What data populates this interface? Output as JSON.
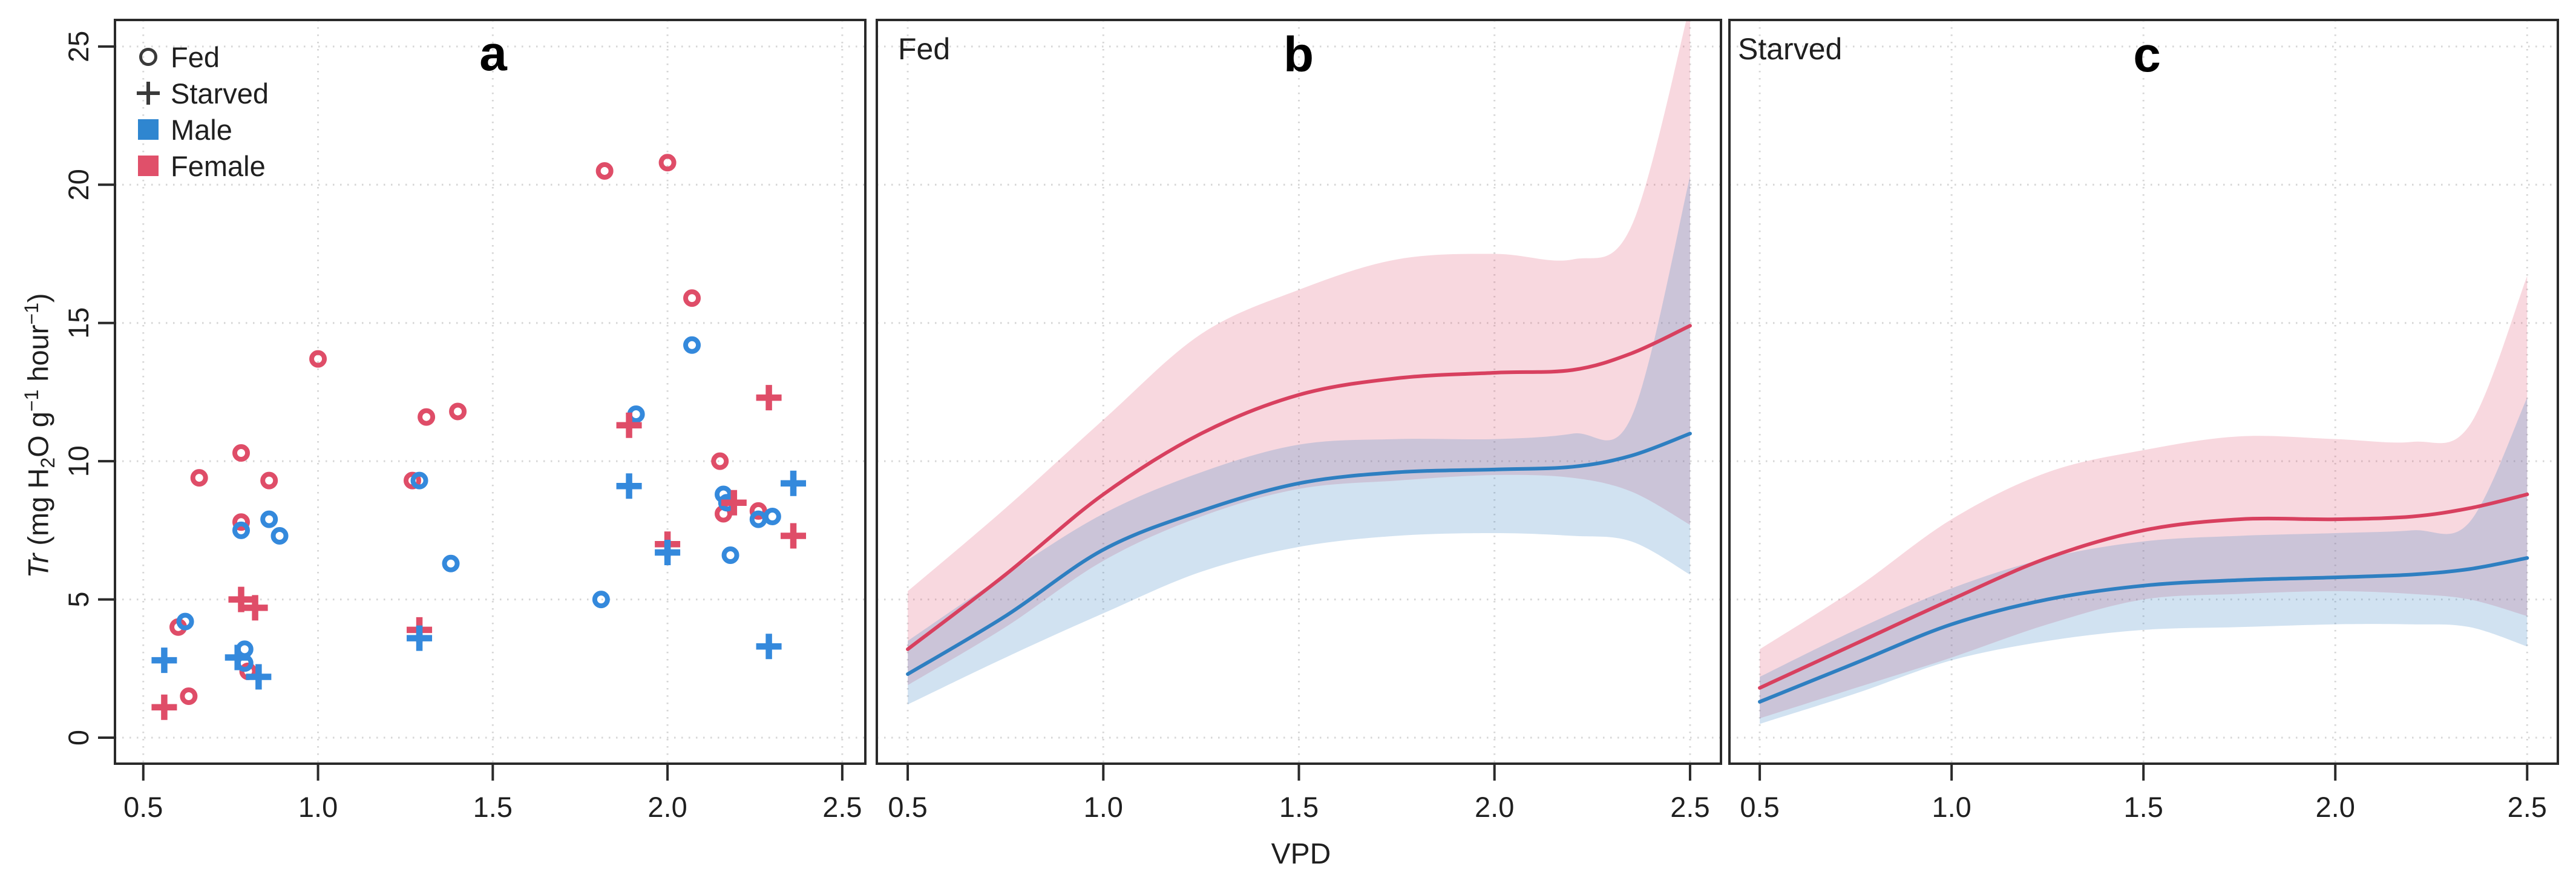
{
  "figure": {
    "axes": {
      "x_label": "VPD",
      "y_label_segments": [
        {
          "t": "Tr",
          "style": "italic"
        },
        {
          "t": " (mg H",
          "style": ""
        },
        {
          "t": "2",
          "style": "sub"
        },
        {
          "t": "O g",
          "style": ""
        },
        {
          "t": "−1",
          "style": "sup"
        },
        {
          "t": " hour",
          "style": ""
        },
        {
          "t": "−1",
          "style": "sup"
        },
        {
          "t": ")",
          "style": ""
        }
      ],
      "x_tick_labels": [
        "0.5",
        "1.0",
        "1.5",
        "2.0",
        "2.5"
      ],
      "y_tick_labels": [
        "0",
        "5",
        "10",
        "15",
        "20",
        "25"
      ]
    },
    "panels": [
      {
        "letter": "a",
        "inner_label": ""
      },
      {
        "letter": "b",
        "inner_label": "Fed"
      },
      {
        "letter": "c",
        "inner_label": "Starved"
      }
    ],
    "legend": {
      "items": [
        {
          "label": "Fed",
          "marker": "open-circle",
          "color": "#3a3a3a"
        },
        {
          "label": "Starved",
          "marker": "plus",
          "color": "#3a3a3a"
        },
        {
          "label": "Male",
          "marker": "square",
          "color": "#2f86d0"
        },
        {
          "label": "Female",
          "marker": "square",
          "color": "#e0506a"
        }
      ]
    },
    "colors": {
      "female_line": "#d8405f",
      "male_line": "#2e7fc1",
      "female_marker": "#df4d68",
      "male_marker": "#3489dc",
      "female_band": "rgba(222,77,110,0.22)",
      "male_band": "rgba(61,133,198,0.24)",
      "grid": "#d6d6d6",
      "axis": "#2a2a2a",
      "text": "#1f1f1f"
    }
  },
  "chart_data": [
    {
      "id": "a",
      "type": "scatter",
      "panel_label": "a",
      "xlabel": "VPD",
      "ylabel": "Tr (mg H2O g-1 hour-1)",
      "xlim": [
        0.419,
        2.566
      ],
      "ylim": [
        -0.94,
        25.96
      ],
      "xticks": [
        0.5,
        1.0,
        1.5,
        2.0,
        2.5
      ],
      "xtick_labels": [
        "0.5",
        "1.0",
        "1.5",
        "2.0",
        "2.5"
      ],
      "yticks": [
        0,
        5,
        10,
        15,
        20,
        25
      ],
      "ytick_labels": [
        "0",
        "5",
        "10",
        "15",
        "20",
        "25"
      ],
      "grid": true,
      "series": [
        {
          "name": "Fed Female",
          "marker": "circle",
          "color": "#df4d68",
          "points": [
            [
              0.63,
              1.5
            ],
            [
              0.6,
              4.0
            ],
            [
              0.66,
              9.4
            ],
            [
              0.78,
              7.8
            ],
            [
              0.78,
              10.3
            ],
            [
              0.8,
              2.4
            ],
            [
              0.86,
              9.3
            ],
            [
              1.0,
              13.7
            ],
            [
              1.27,
              9.3
            ],
            [
              1.31,
              11.6
            ],
            [
              1.4,
              11.8
            ],
            [
              1.82,
              20.5
            ],
            [
              2.0,
              20.8
            ],
            [
              2.07,
              15.9
            ],
            [
              2.15,
              10.0
            ],
            [
              2.16,
              8.1
            ],
            [
              2.26,
              8.2
            ]
          ]
        },
        {
          "name": "Fed Male",
          "marker": "circle",
          "color": "#3489dc",
          "points": [
            [
              0.62,
              4.2
            ],
            [
              0.78,
              7.5
            ],
            [
              0.79,
              3.2
            ],
            [
              0.79,
              2.7
            ],
            [
              0.86,
              7.9
            ],
            [
              0.89,
              7.3
            ],
            [
              1.29,
              9.3
            ],
            [
              1.38,
              6.3
            ],
            [
              1.81,
              5.0
            ],
            [
              1.91,
              11.7
            ],
            [
              2.07,
              14.2
            ],
            [
              2.16,
              8.8
            ],
            [
              2.17,
              8.5
            ],
            [
              2.18,
              6.6
            ],
            [
              2.26,
              7.9
            ],
            [
              2.3,
              8.0
            ]
          ]
        },
        {
          "name": "Starved Female",
          "marker": "plus",
          "color": "#df4d68",
          "points": [
            [
              0.56,
              1.1
            ],
            [
              0.78,
              5.0
            ],
            [
              0.82,
              4.7
            ],
            [
              1.29,
              3.9
            ],
            [
              1.89,
              11.3
            ],
            [
              2.0,
              7.0
            ],
            [
              2.19,
              8.5
            ],
            [
              2.29,
              12.3
            ],
            [
              2.36,
              7.3
            ]
          ]
        },
        {
          "name": "Starved Male",
          "marker": "plus",
          "color": "#3489dc",
          "points": [
            [
              0.56,
              2.8
            ],
            [
              0.77,
              2.9
            ],
            [
              0.83,
              2.2
            ],
            [
              1.29,
              3.6
            ],
            [
              1.89,
              9.1
            ],
            [
              2.0,
              6.7
            ],
            [
              2.29,
              3.3
            ],
            [
              2.36,
              9.2
            ]
          ]
        }
      ]
    },
    {
      "id": "b",
      "type": "line",
      "panel_label": "b",
      "inner_label": "Fed",
      "xlabel": "VPD",
      "xlim": [
        0.421,
        2.579
      ],
      "ylim": [
        -0.94,
        25.96
      ],
      "xticks": [
        0.5,
        1.0,
        1.5,
        2.0,
        2.5
      ],
      "xtick_labels": [
        "0.5",
        "1.0",
        "1.5",
        "2.0",
        "2.5"
      ],
      "yticks": [
        0,
        5,
        10,
        15,
        20,
        25
      ],
      "ytick_labels": [
        "0",
        "5",
        "10",
        "15",
        "20",
        "25"
      ],
      "grid": true,
      "x": [
        0.5,
        0.75,
        1.0,
        1.25,
        1.5,
        1.75,
        2.0,
        2.2,
        2.35,
        2.5
      ],
      "series": [
        {
          "name": "Female",
          "color": "#d8405f",
          "fill": "rgba(222,77,110,0.22)",
          "y": [
            3.2,
            5.9,
            8.8,
            11.0,
            12.4,
            13.0,
            13.2,
            13.3,
            13.9,
            14.9
          ],
          "upper": [
            5.3,
            8.3,
            11.5,
            14.6,
            16.2,
            17.3,
            17.5,
            17.3,
            18.5,
            26.5
          ],
          "lower": [
            1.9,
            4.0,
            6.4,
            8.0,
            9.0,
            9.3,
            9.5,
            9.4,
            8.9,
            7.7
          ]
        },
        {
          "name": "Male",
          "color": "#2e7fc1",
          "fill": "rgba(61,133,198,0.24)",
          "y": [
            2.3,
            4.4,
            6.8,
            8.2,
            9.2,
            9.6,
            9.7,
            9.8,
            10.2,
            11.0
          ],
          "upper": [
            3.5,
            5.9,
            8.1,
            9.6,
            10.6,
            10.8,
            10.8,
            11.0,
            11.6,
            20.3
          ],
          "lower": [
            1.2,
            2.9,
            4.5,
            6.0,
            6.9,
            7.3,
            7.4,
            7.3,
            7.1,
            5.9
          ]
        }
      ]
    },
    {
      "id": "c",
      "type": "line",
      "panel_label": "c",
      "inner_label": "Starved",
      "xlabel": "VPD",
      "xlim": [
        0.421,
        2.58
      ],
      "ylim": [
        -0.94,
        25.96
      ],
      "xticks": [
        0.5,
        1.0,
        1.5,
        2.0,
        2.5
      ],
      "xtick_labels": [
        "0.5",
        "1.0",
        "1.5",
        "2.0",
        "2.5"
      ],
      "yticks": [
        0,
        5,
        10,
        15,
        20,
        25
      ],
      "ytick_labels": [
        "0",
        "5",
        "10",
        "15",
        "20",
        "25"
      ],
      "grid": true,
      "x": [
        0.5,
        0.75,
        1.0,
        1.25,
        1.5,
        1.75,
        2.0,
        2.2,
        2.35,
        2.5
      ],
      "series": [
        {
          "name": "Female",
          "color": "#d8405f",
          "fill": "rgba(222,77,110,0.22)",
          "y": [
            1.8,
            3.4,
            5.0,
            6.5,
            7.5,
            7.9,
            7.9,
            8.0,
            8.3,
            8.8
          ],
          "upper": [
            3.2,
            5.4,
            7.9,
            9.6,
            10.4,
            10.9,
            10.8,
            10.7,
            11.3,
            16.7
          ],
          "lower": [
            0.7,
            1.8,
            2.9,
            4.1,
            5.0,
            5.2,
            5.3,
            5.2,
            5.0,
            4.4
          ]
        },
        {
          "name": "Male",
          "color": "#2e7fc1",
          "fill": "rgba(61,133,198,0.24)",
          "y": [
            1.3,
            2.7,
            4.1,
            5.0,
            5.5,
            5.7,
            5.8,
            5.9,
            6.1,
            6.5
          ],
          "upper": [
            2.2,
            3.9,
            5.4,
            6.5,
            7.1,
            7.3,
            7.4,
            7.5,
            7.8,
            12.3
          ],
          "lower": [
            0.5,
            1.6,
            2.8,
            3.5,
            3.9,
            4.0,
            4.1,
            4.1,
            4.0,
            3.3
          ]
        }
      ]
    }
  ]
}
